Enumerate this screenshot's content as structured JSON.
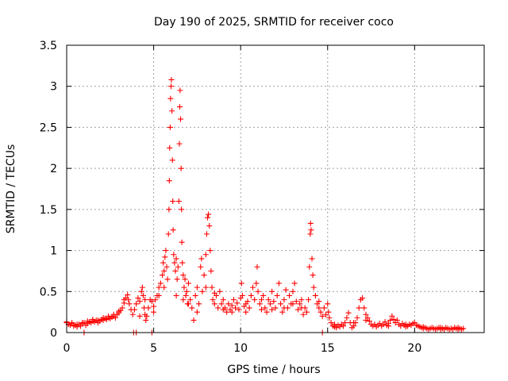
{
  "chart_data": {
    "type": "scatter",
    "title": "Day 190 of 2025, SRMTID for receiver coco",
    "xlabel": "GPS time / hours",
    "ylabel": "SRMTID / TECUs",
    "xlim": [
      0,
      24
    ],
    "ylim": [
      0,
      3.5
    ],
    "xticks": [
      0,
      5,
      10,
      15,
      20
    ],
    "xtick_labels": [
      "0",
      "5",
      "10",
      "15",
      "20"
    ],
    "yticks": [
      0,
      0.5,
      1,
      1.5,
      2,
      2.5,
      3,
      3.5
    ],
    "ytick_labels": [
      "0",
      "0.5",
      "1",
      "1.5",
      "2",
      "2.5",
      "3",
      "3.5"
    ],
    "grid": true,
    "marker": "+",
    "color": "#ff0000",
    "series": [
      {
        "name": "SRMTID",
        "points": [
          [
            0.0,
            0.12
          ],
          [
            0.1,
            0.1
          ],
          [
            0.2,
            0.09
          ],
          [
            0.3,
            0.11
          ],
          [
            0.4,
            0.08
          ],
          [
            0.5,
            0.09
          ],
          [
            0.6,
            0.07
          ],
          [
            0.7,
            0.1
          ],
          [
            0.8,
            0.08
          ],
          [
            0.9,
            0.11
          ],
          [
            1.0,
            0.12
          ],
          [
            1.1,
            0.09
          ],
          [
            1.2,
            0.11
          ],
          [
            1.3,
            0.13
          ],
          [
            1.4,
            0.12
          ],
          [
            1.5,
            0.14
          ],
          [
            1.6,
            0.13
          ],
          [
            1.7,
            0.15
          ],
          [
            1.8,
            0.12
          ],
          [
            1.9,
            0.14
          ],
          [
            2.0,
            0.16
          ],
          [
            2.1,
            0.15
          ],
          [
            2.2,
            0.17
          ],
          [
            2.3,
            0.16
          ],
          [
            2.4,
            0.18
          ],
          [
            2.5,
            0.17
          ],
          [
            2.6,
            0.19
          ],
          [
            2.7,
            0.2
          ],
          [
            2.8,
            0.18
          ],
          [
            2.9,
            0.22
          ],
          [
            3.0,
            0.24
          ],
          [
            3.1,
            0.27
          ],
          [
            3.2,
            0.3
          ],
          [
            3.3,
            0.36
          ],
          [
            3.4,
            0.42
          ],
          [
            3.5,
            0.46
          ],
          [
            3.55,
            0.4
          ],
          [
            3.6,
            0.35
          ],
          [
            3.7,
            0.28
          ],
          [
            3.8,
            0.22
          ],
          [
            0.0,
            0.13
          ],
          [
            0.3,
            0.12
          ],
          [
            0.6,
            0.1
          ],
          [
            0.9,
            0.12
          ],
          [
            1.2,
            0.14
          ],
          [
            1.5,
            0.16
          ],
          [
            1.8,
            0.15
          ],
          [
            2.1,
            0.18
          ],
          [
            2.4,
            0.2
          ],
          [
            2.7,
            0.22
          ],
          [
            3.0,
            0.26
          ],
          [
            3.3,
            0.4
          ],
          [
            1.0,
            0.0
          ],
          [
            3.85,
            0.0
          ],
          [
            4.0,
            0.0
          ],
          [
            4.9,
            0.0
          ],
          [
            14.7,
            0.0
          ],
          [
            3.9,
            0.28
          ],
          [
            4.0,
            0.35
          ],
          [
            4.1,
            0.42
          ],
          [
            4.2,
            0.38
          ],
          [
            4.3,
            0.5
          ],
          [
            4.35,
            0.55
          ],
          [
            4.4,
            0.45
          ],
          [
            4.45,
            0.3
          ],
          [
            4.5,
            0.22
          ],
          [
            4.55,
            0.15
          ],
          [
            4.6,
            0.2
          ],
          [
            4.7,
            0.3
          ],
          [
            4.8,
            0.4
          ],
          [
            4.9,
            0.38
          ],
          [
            5.0,
            0.32
          ],
          [
            5.1,
            0.4
          ],
          [
            5.2,
            0.45
          ],
          [
            5.3,
            0.55
          ],
          [
            5.4,
            0.6
          ],
          [
            5.5,
            0.7
          ],
          [
            5.55,
            0.85
          ],
          [
            5.6,
            0.75
          ],
          [
            5.65,
            0.92
          ],
          [
            5.7,
            1.0
          ],
          [
            5.75,
            0.8
          ],
          [
            5.8,
            0.65
          ],
          [
            5.85,
            1.2
          ],
          [
            5.88,
            1.5
          ],
          [
            5.9,
            1.85
          ],
          [
            5.92,
            2.25
          ],
          [
            5.95,
            2.5
          ],
          [
            5.97,
            2.85
          ],
          [
            6.0,
            3.0
          ],
          [
            6.02,
            3.08
          ],
          [
            6.05,
            2.7
          ],
          [
            6.08,
            2.1
          ],
          [
            6.1,
            1.6
          ],
          [
            6.12,
            1.25
          ],
          [
            6.15,
            0.95
          ],
          [
            6.2,
            0.85
          ],
          [
            6.25,
            0.75
          ],
          [
            6.3,
            0.9
          ],
          [
            6.35,
            0.65
          ],
          [
            6.4,
            0.8
          ],
          [
            6.45,
            1.6
          ],
          [
            6.48,
            2.3
          ],
          [
            6.5,
            2.75
          ],
          [
            6.52,
            2.95
          ],
          [
            6.55,
            2.6
          ],
          [
            6.58,
            2.0
          ],
          [
            6.6,
            1.5
          ],
          [
            6.62,
            1.1
          ],
          [
            6.65,
            0.85
          ],
          [
            6.7,
            0.7
          ],
          [
            6.75,
            0.55
          ],
          [
            6.8,
            0.65
          ],
          [
            6.85,
            0.45
          ],
          [
            6.9,
            0.5
          ],
          [
            6.95,
            0.35
          ],
          [
            7.0,
            0.6
          ],
          [
            7.1,
            0.4
          ],
          [
            7.2,
            0.3
          ],
          [
            7.3,
            0.15
          ],
          [
            7.4,
            0.45
          ],
          [
            7.5,
            0.55
          ],
          [
            7.6,
            0.35
          ],
          [
            7.7,
            0.8
          ],
          [
            7.75,
            0.9
          ],
          [
            7.8,
            0.5
          ],
          [
            7.9,
            0.7
          ],
          [
            8.0,
            0.95
          ],
          [
            8.05,
            1.2
          ],
          [
            8.1,
            1.4
          ],
          [
            8.15,
            1.44
          ],
          [
            8.2,
            1.3
          ],
          [
            8.25,
            1.0
          ],
          [
            8.3,
            0.75
          ],
          [
            8.35,
            0.55
          ],
          [
            8.4,
            0.4
          ],
          [
            8.5,
            0.35
          ],
          [
            8.6,
            0.45
          ],
          [
            8.7,
            0.3
          ],
          [
            8.8,
            0.5
          ],
          [
            8.9,
            0.35
          ],
          [
            9.0,
            0.4
          ],
          [
            9.1,
            0.3
          ],
          [
            9.2,
            0.25
          ],
          [
            9.3,
            0.35
          ],
          [
            9.4,
            0.28
          ],
          [
            9.5,
            0.33
          ],
          [
            9.6,
            0.4
          ],
          [
            9.7,
            0.3
          ],
          [
            9.8,
            0.36
          ],
          [
            9.9,
            0.28
          ],
          [
            10.0,
            0.42
          ],
          [
            10.05,
            0.6
          ],
          [
            10.1,
            0.45
          ],
          [
            10.2,
            0.32
          ],
          [
            10.3,
            0.25
          ],
          [
            10.4,
            0.38
          ],
          [
            10.5,
            0.3
          ],
          [
            10.6,
            0.45
          ],
          [
            10.7,
            0.55
          ],
          [
            10.8,
            0.4
          ],
          [
            10.9,
            0.6
          ],
          [
            10.95,
            0.8
          ],
          [
            11.0,
            0.5
          ],
          [
            11.1,
            0.35
          ],
          [
            11.2,
            0.28
          ],
          [
            11.3,
            0.45
          ],
          [
            11.4,
            0.3
          ],
          [
            11.5,
            0.25
          ],
          [
            11.6,
            0.4
          ],
          [
            11.7,
            0.35
          ],
          [
            11.8,
            0.5
          ],
          [
            11.9,
            0.38
          ],
          [
            12.0,
            0.3
          ],
          [
            12.1,
            0.45
          ],
          [
            12.2,
            0.6
          ],
          [
            12.3,
            0.35
          ],
          [
            12.4,
            0.25
          ],
          [
            12.5,
            0.4
          ],
          [
            12.6,
            0.52
          ],
          [
            12.7,
            0.3
          ],
          [
            12.8,
            0.45
          ],
          [
            12.9,
            0.35
          ],
          [
            13.0,
            0.5
          ],
          [
            13.1,
            0.6
          ],
          [
            13.2,
            0.38
          ],
          [
            13.3,
            0.28
          ],
          [
            13.4,
            0.35
          ],
          [
            13.5,
            0.3
          ],
          [
            13.6,
            0.22
          ],
          [
            13.7,
            0.3
          ],
          [
            13.8,
            0.25
          ],
          [
            13.9,
            0.4
          ],
          [
            13.95,
            0.8
          ],
          [
            14.0,
            1.2
          ],
          [
            14.02,
            1.33
          ],
          [
            14.05,
            1.25
          ],
          [
            14.1,
            0.9
          ],
          [
            14.15,
            0.7
          ],
          [
            14.2,
            0.55
          ],
          [
            14.3,
            0.45
          ],
          [
            14.4,
            0.35
          ],
          [
            14.5,
            0.3
          ],
          [
            14.6,
            0.25
          ],
          [
            14.7,
            0.2
          ],
          [
            14.8,
            0.3
          ],
          [
            14.9,
            0.22
          ],
          [
            15.0,
            0.35
          ],
          [
            15.05,
            0.25
          ],
          [
            15.1,
            0.18
          ],
          [
            15.2,
            0.12
          ],
          [
            15.3,
            0.08
          ],
          [
            15.4,
            0.07
          ],
          [
            15.5,
            0.06
          ],
          [
            15.6,
            0.09
          ],
          [
            15.7,
            0.07
          ],
          [
            15.8,
            0.1
          ],
          [
            15.9,
            0.08
          ],
          [
            16.0,
            0.12
          ],
          [
            16.1,
            0.18
          ],
          [
            16.2,
            0.24
          ],
          [
            16.3,
            0.12
          ],
          [
            16.4,
            0.06
          ],
          [
            16.5,
            0.08
          ],
          [
            16.6,
            0.12
          ],
          [
            16.7,
            0.18
          ],
          [
            16.8,
            0.3
          ],
          [
            16.9,
            0.4
          ],
          [
            17.0,
            0.42
          ],
          [
            17.1,
            0.3
          ],
          [
            17.2,
            0.22
          ],
          [
            17.3,
            0.18
          ],
          [
            17.4,
            0.14
          ],
          [
            17.5,
            0.1
          ],
          [
            17.6,
            0.08
          ],
          [
            17.7,
            0.1
          ],
          [
            17.8,
            0.07
          ],
          [
            17.9,
            0.09
          ],
          [
            18.0,
            0.11
          ],
          [
            18.1,
            0.08
          ],
          [
            18.2,
            0.1
          ],
          [
            18.3,
            0.13
          ],
          [
            18.4,
            0.09
          ],
          [
            18.5,
            0.11
          ],
          [
            18.6,
            0.15
          ],
          [
            18.7,
            0.2
          ],
          [
            18.8,
            0.16
          ],
          [
            18.9,
            0.12
          ],
          [
            19.0,
            0.15
          ],
          [
            19.1,
            0.1
          ],
          [
            19.2,
            0.08
          ],
          [
            19.3,
            0.11
          ],
          [
            19.4,
            0.09
          ],
          [
            19.5,
            0.07
          ],
          [
            19.6,
            0.08
          ],
          [
            19.7,
            0.1
          ],
          [
            19.8,
            0.09
          ],
          [
            19.9,
            0.11
          ],
          [
            20.0,
            0.12
          ],
          [
            20.1,
            0.09
          ],
          [
            20.2,
            0.08
          ],
          [
            20.3,
            0.07
          ],
          [
            20.4,
            0.06
          ],
          [
            20.5,
            0.05
          ],
          [
            20.6,
            0.06
          ],
          [
            20.7,
            0.05
          ],
          [
            20.8,
            0.04
          ],
          [
            20.9,
            0.05
          ],
          [
            21.0,
            0.06
          ],
          [
            21.1,
            0.05
          ],
          [
            21.2,
            0.04
          ],
          [
            21.3,
            0.05
          ],
          [
            21.4,
            0.06
          ],
          [
            21.5,
            0.04
          ],
          [
            21.6,
            0.05
          ],
          [
            21.7,
            0.04
          ],
          [
            21.8,
            0.06
          ],
          [
            21.9,
            0.05
          ],
          [
            22.0,
            0.04
          ],
          [
            22.1,
            0.05
          ],
          [
            22.2,
            0.04
          ],
          [
            22.3,
            0.06
          ],
          [
            22.4,
            0.05
          ],
          [
            22.5,
            0.04
          ],
          [
            22.6,
            0.05
          ],
          [
            22.7,
            0.04
          ],
          [
            22.8,
            0.05
          ],
          [
            4.2,
            0.2
          ],
          [
            4.5,
            0.4
          ],
          [
            5.0,
            0.25
          ],
          [
            5.3,
            0.45
          ],
          [
            5.6,
            0.55
          ],
          [
            6.3,
            0.45
          ],
          [
            6.7,
            0.4
          ],
          [
            7.0,
            0.35
          ],
          [
            7.5,
            0.25
          ],
          [
            8.0,
            0.55
          ],
          [
            8.5,
            0.48
          ],
          [
            9.0,
            0.28
          ],
          [
            9.5,
            0.25
          ],
          [
            10.3,
            0.35
          ],
          [
            11.2,
            0.4
          ],
          [
            11.8,
            0.28
          ],
          [
            12.5,
            0.3
          ],
          [
            13.0,
            0.35
          ],
          [
            13.5,
            0.4
          ],
          [
            14.5,
            0.38
          ],
          [
            15.4,
            0.1
          ],
          [
            16.5,
            0.12
          ],
          [
            17.2,
            0.15
          ],
          [
            18.5,
            0.08
          ],
          [
            19.5,
            0.1
          ],
          [
            20.5,
            0.07
          ],
          [
            21.5,
            0.06
          ],
          [
            22.5,
            0.06
          ]
        ]
      }
    ]
  }
}
